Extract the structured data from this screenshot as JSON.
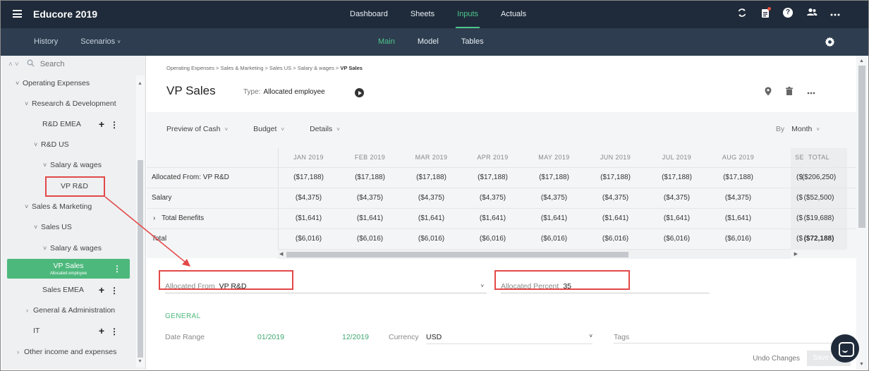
{
  "app": {
    "title": "Educore 2019"
  },
  "topnav": [
    {
      "label": "Dashboard",
      "active": false
    },
    {
      "label": "Sheets",
      "active": false
    },
    {
      "label": "Inputs",
      "active": true
    },
    {
      "label": "Actuals",
      "active": false
    }
  ],
  "top_icons": [
    "sync-icon",
    "clipboard-icon",
    "help-icon",
    "users-icon",
    "more-icon"
  ],
  "help_glyph": "?",
  "subbar": {
    "history": "History",
    "scenarios": "Scenarios",
    "tabs": [
      {
        "label": "Main",
        "active": true
      },
      {
        "label": "Model",
        "active": false
      },
      {
        "label": "Tables",
        "active": false
      }
    ]
  },
  "sidebar": {
    "search_placeholder": "Search",
    "items": [
      {
        "label": "Operating Expenses",
        "chevron": "˅",
        "actions": false
      },
      {
        "label": "Research & Development",
        "chevron": "˅",
        "actions": false
      },
      {
        "label": "R&D EMEA",
        "chevron": "",
        "actions": true
      },
      {
        "label": "R&D US",
        "chevron": "˅",
        "actions": false
      },
      {
        "label": "Salary & wages",
        "chevron": "˅",
        "actions": false
      },
      {
        "label": "VP R&D",
        "chevron": "",
        "actions": false
      },
      {
        "label": "Sales & Marketing",
        "chevron": "˅",
        "actions": false
      },
      {
        "label": "Sales US",
        "chevron": "˅",
        "actions": false
      },
      {
        "label": "Salary & wages",
        "chevron": "˅",
        "actions": false
      },
      {
        "label": "VP Sales",
        "sublabel": "Allocated employee",
        "selected": true
      },
      {
        "label": "Sales EMEA",
        "chevron": "",
        "actions": true
      },
      {
        "label": "General & Administration",
        "chevron": "›",
        "actions": false
      },
      {
        "label": "IT",
        "chevron": "",
        "actions": true
      },
      {
        "label": "Other income and expenses",
        "chevron": "›",
        "actions": false
      }
    ]
  },
  "main": {
    "breadcrumb": "Operating Expenses > Sales & Marketing > Sales US > Salary & wages > ",
    "breadcrumb_current": "VP Sales",
    "title": "VP Sales",
    "type_label": "Type:",
    "type_value": "Allocated employee",
    "view_options": [
      "Preview of Cash",
      "Budget",
      "Details"
    ],
    "by_label": "By",
    "by_value": "Month"
  },
  "grid": {
    "columns": [
      "JAN 2019",
      "FEB 2019",
      "MAR 2019",
      "APR 2019",
      "MAY 2019",
      "JUN 2019",
      "JUL 2019",
      "AUG 2019",
      "SE"
    ],
    "total_label": "TOTAL",
    "rows": [
      {
        "label": "Allocated From: VP R&D",
        "values": [
          "($17,188)",
          "($17,188)",
          "($17,188)",
          "($17,188)",
          "($17,188)",
          "($17,188)",
          "($17,188)",
          "($17,188)",
          "($"
        ],
        "total": "($206,250)"
      },
      {
        "label": "Salary",
        "values": [
          "($4,375)",
          "($4,375)",
          "($4,375)",
          "($4,375)",
          "($4,375)",
          "($4,375)",
          "($4,375)",
          "($4,375)",
          "($"
        ],
        "total": "($52,500)"
      },
      {
        "label": "Total Benefits",
        "expandable": true,
        "values": [
          "($1,641)",
          "($1,641)",
          "($1,641)",
          "($1,641)",
          "($1,641)",
          "($1,641)",
          "($1,641)",
          "($1,641)",
          "($"
        ],
        "total": "($19,688)"
      },
      {
        "label": "Total",
        "values": [
          "($6,016)",
          "($6,016)",
          "($6,016)",
          "($6,016)",
          "($6,016)",
          "($6,016)",
          "($6,016)",
          "($6,016)",
          "($"
        ],
        "total": "($72,188)"
      }
    ]
  },
  "form": {
    "allocated_from_label": "Allocated From",
    "allocated_from_value": "VP R&D",
    "allocated_percent_label": "Allocated Percent",
    "allocated_percent_value": "35",
    "general_heading": "GENERAL",
    "date_range_label": "Date Range",
    "date_start": "01/2019",
    "date_end": "12/2019",
    "currency_label": "Currency",
    "currency_value": "USD",
    "tags_label": "Tags",
    "undo_label": "Undo Changes",
    "save_label": "Save Now"
  },
  "colors": {
    "accent": "#4db87c",
    "topbar": "#1f2b3a",
    "subbar": "#2e3d4f",
    "highlight": "#e34848"
  }
}
